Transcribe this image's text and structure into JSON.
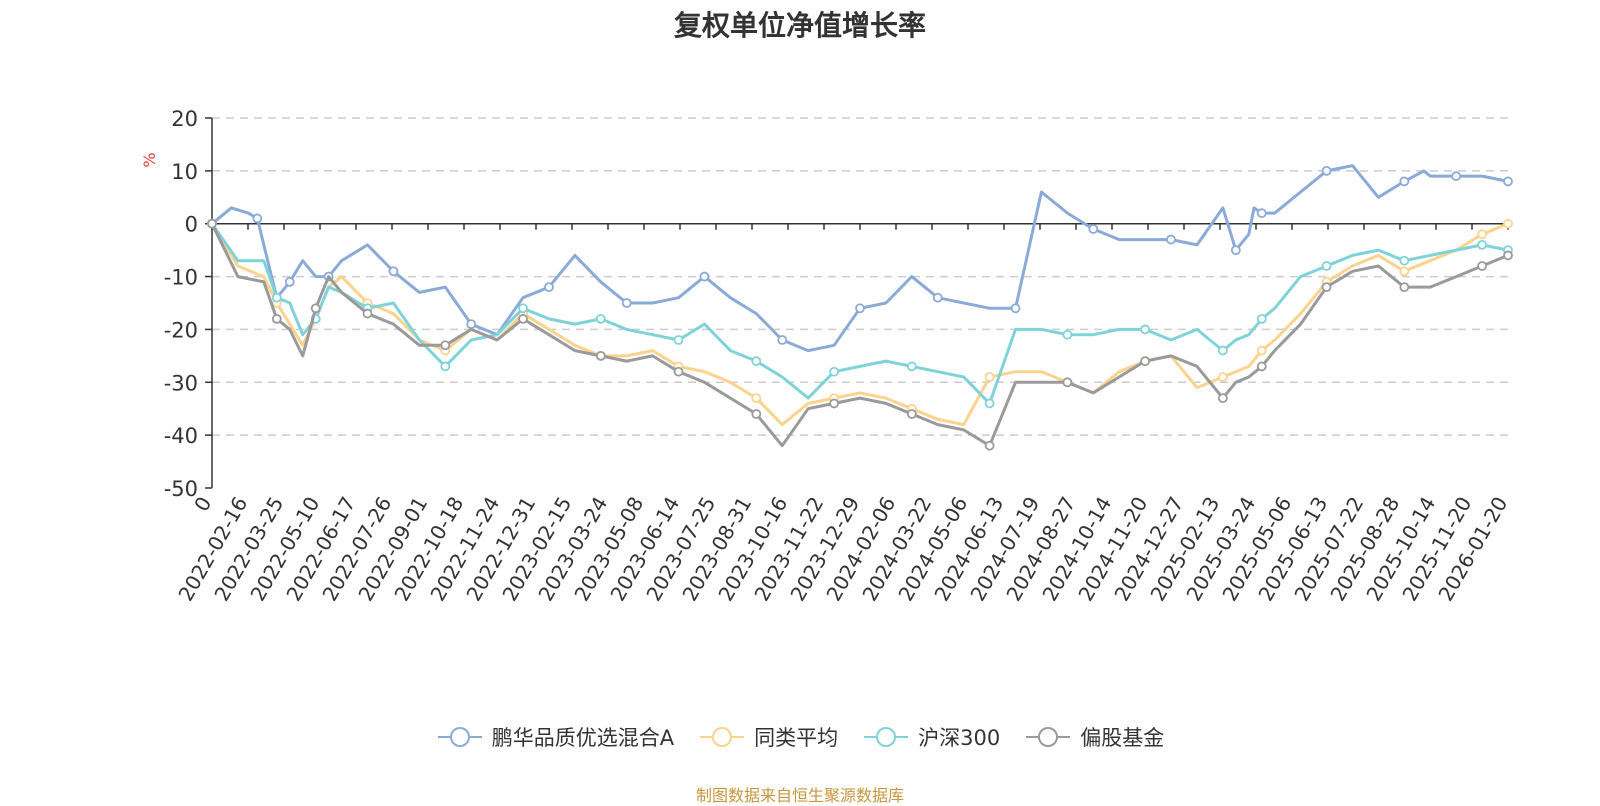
{
  "chart_data": {
    "type": "line",
    "title": "复权单位净值增长率",
    "ylabel": "%",
    "xlabel": "",
    "ylim": [
      -50,
      20
    ],
    "yticks": [
      20,
      10,
      0,
      -10,
      -20,
      -30,
      -40,
      -50
    ],
    "xlim_index": [
      0,
      100
    ],
    "categories": [
      "0",
      "2022-02-16",
      "2022-03-25",
      "2022-05-10",
      "2022-06-17",
      "2022-07-26",
      "2022-09-01",
      "2022-10-18",
      "2022-11-24",
      "2022-12-31",
      "2023-02-15",
      "2023-03-24",
      "2023-05-08",
      "2023-06-14",
      "2023-07-25",
      "2023-08-31",
      "2023-10-16",
      "2023-11-22",
      "2023-12-29",
      "2024-02-06",
      "2024-03-22",
      "2024-05-06",
      "2024-06-13",
      "2024-07-19",
      "2024-08-27",
      "2024-10-14",
      "2024-11-20",
      "2024-12-27",
      "2025-02-13",
      "2025-03-24",
      "2025-05-06",
      "2025-06-13",
      "2025-07-22",
      "2025-08-28",
      "2025-10-14",
      "2025-11-20",
      "2026-01-20"
    ],
    "legend_position": "bottom",
    "grid": true,
    "series": [
      {
        "name": "鹏华品质优选混合A",
        "color": "#8aaad8",
        "x": [
          0,
          1.5,
          2.8,
          3.5,
          4,
          5,
          6,
          7,
          8,
          9,
          10,
          12,
          14,
          16,
          18,
          20,
          22,
          24,
          26,
          28,
          30,
          32,
          34,
          36,
          38,
          40,
          42,
          44,
          46,
          48,
          50,
          52,
          54,
          56,
          58,
          60,
          62,
          64,
          66,
          68,
          70,
          72,
          74,
          76,
          78,
          79,
          80,
          80.4,
          81,
          82,
          84,
          86,
          88,
          90,
          92,
          93.5,
          94,
          96,
          98,
          100
        ],
        "values": [
          0,
          3,
          2,
          1,
          -4,
          -14,
          -11,
          -7,
          -10,
          -10,
          -7,
          -4,
          -9,
          -13,
          -12,
          -19,
          -21,
          -14,
          -12,
          -6,
          -11,
          -15,
          -15,
          -14,
          -10,
          -14,
          -17,
          -22,
          -24,
          -23,
          -16,
          -15,
          -10,
          -14,
          -15,
          -16,
          -16,
          6,
          2,
          -1,
          -3,
          -3,
          -3,
          -4,
          3,
          -5,
          -2,
          3,
          2,
          2,
          6,
          10,
          11,
          5,
          8,
          10,
          9,
          9,
          9,
          8
        ]
      },
      {
        "name": "同类平均",
        "color": "#fcd38d",
        "x": [
          0,
          2,
          4,
          5,
          6,
          7,
          8,
          9,
          10,
          12,
          14,
          16,
          18,
          20,
          22,
          24,
          26,
          28,
          30,
          32,
          34,
          36,
          38,
          40,
          42,
          44,
          46,
          48,
          50,
          52,
          54,
          56,
          58,
          60,
          62,
          64,
          66,
          68,
          70,
          72,
          74,
          76,
          78,
          79,
          80,
          81,
          82,
          84,
          86,
          88,
          90,
          92,
          94,
          96,
          98,
          100
        ],
        "values": [
          0,
          -8,
          -10,
          -15,
          -19,
          -23,
          -18,
          -12,
          -10,
          -15,
          -17,
          -22,
          -24,
          -20,
          -22,
          -17,
          -20,
          -23,
          -25,
          -25,
          -24,
          -27,
          -28,
          -30,
          -33,
          -38,
          -34,
          -33,
          -32,
          -33,
          -35,
          -37,
          -38,
          -29,
          -28,
          -28,
          -30,
          -32,
          -28,
          -26,
          -25,
          -31,
          -29,
          -28,
          -27,
          -24,
          -22,
          -17,
          -11,
          -8,
          -6,
          -9,
          -7,
          -5,
          -2,
          0
        ]
      },
      {
        "name": "沪深300",
        "color": "#7fd3d8",
        "x": [
          0,
          2,
          4,
          5,
          6,
          7,
          8,
          9,
          10,
          12,
          14,
          16,
          18,
          20,
          22,
          24,
          26,
          28,
          30,
          32,
          34,
          36,
          38,
          40,
          42,
          44,
          46,
          48,
          50,
          52,
          54,
          56,
          58,
          60,
          62,
          64,
          66,
          68,
          70,
          72,
          74,
          76,
          78,
          79,
          80,
          81,
          82,
          84,
          86,
          88,
          90,
          92,
          94,
          96,
          98,
          100
        ],
        "values": [
          0,
          -7,
          -7,
          -14,
          -15,
          -21,
          -18,
          -12,
          -13,
          -16,
          -15,
          -22,
          -27,
          -22,
          -21,
          -16,
          -18,
          -19,
          -18,
          -20,
          -21,
          -22,
          -19,
          -24,
          -26,
          -29,
          -33,
          -28,
          -27,
          -26,
          -27,
          -28,
          -29,
          -34,
          -20,
          -20,
          -21,
          -21,
          -20,
          -20,
          -22,
          -20,
          -24,
          -22,
          -21,
          -18,
          -16,
          -10,
          -8,
          -6,
          -5,
          -7,
          -6,
          -5,
          -4,
          -5
        ]
      },
      {
        "name": "偏股基金",
        "color": "#9a9a9a",
        "x": [
          0,
          2,
          4,
          5,
          6,
          7,
          8,
          9,
          10,
          12,
          14,
          16,
          18,
          20,
          22,
          24,
          26,
          28,
          30,
          32,
          34,
          36,
          38,
          40,
          42,
          44,
          46,
          48,
          50,
          52,
          54,
          56,
          58,
          60,
          62,
          64,
          66,
          68,
          70,
          72,
          74,
          76,
          78,
          79,
          80,
          81,
          82,
          84,
          86,
          88,
          90,
          92,
          94,
          96,
          98,
          100
        ],
        "values": [
          0,
          -10,
          -11,
          -18,
          -20,
          -25,
          -16,
          -10,
          -13,
          -17,
          -19,
          -23,
          -23,
          -20,
          -22,
          -18,
          -21,
          -24,
          -25,
          -26,
          -25,
          -28,
          -30,
          -33,
          -36,
          -42,
          -35,
          -34,
          -33,
          -34,
          -36,
          -38,
          -39,
          -42,
          -30,
          -30,
          -30,
          -32,
          -29,
          -26,
          -25,
          -27,
          -33,
          -30,
          -29,
          -27,
          -24,
          -19,
          -12,
          -9,
          -8,
          -12,
          -12,
          -10,
          -8,
          -6
        ]
      }
    ]
  },
  "legend": {
    "items": [
      "鹏华品质优选混合A",
      "同类平均",
      "沪深300",
      "偏股基金"
    ]
  },
  "footer": {
    "source_text": "制图数据来自恒生聚源数据库"
  }
}
